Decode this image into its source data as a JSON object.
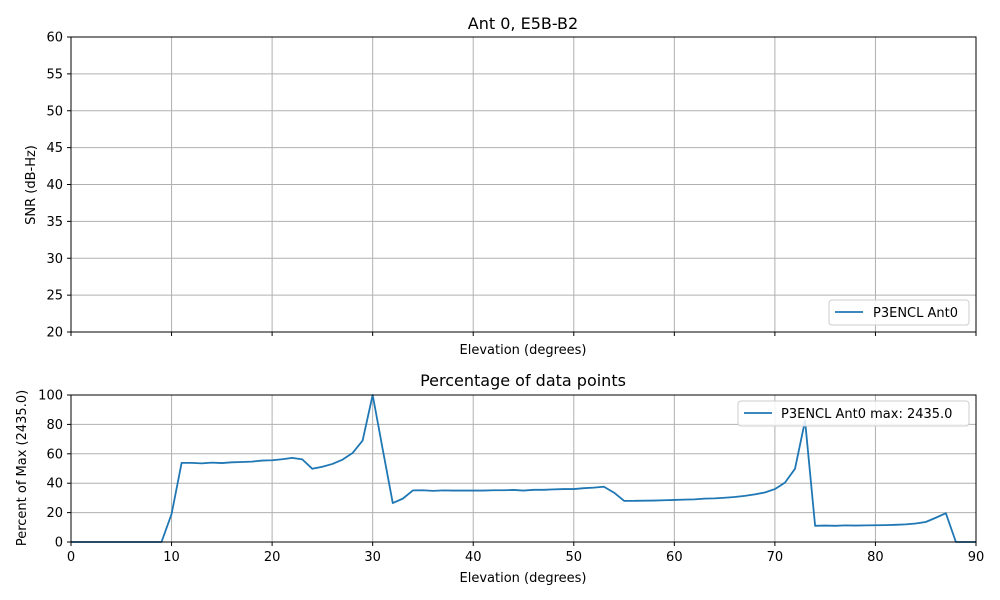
{
  "chart_data": [
    {
      "type": "line",
      "title": "Ant 0, E5B-B2",
      "xlabel": "Elevation (degrees)",
      "ylabel": "SNR (dB-Hz)",
      "xlim": [
        0,
        90
      ],
      "ylim": [
        20,
        60
      ],
      "x_ticks": [
        0,
        10,
        20,
        30,
        40,
        50,
        60,
        70,
        80,
        90
      ],
      "x_tick_labels_visible": false,
      "y_ticks": [
        20,
        25,
        30,
        35,
        40,
        45,
        50,
        55,
        60
      ],
      "grid": true,
      "legend_position": "lower-right",
      "series": [
        {
          "name": "P3ENCL Ant0",
          "color": "#1f77b4",
          "x": [],
          "y": []
        }
      ]
    },
    {
      "type": "line",
      "title": "Percentage of data points",
      "xlabel": "Elevation (degrees)",
      "ylabel": "Percent of Max (2435.0)",
      "xlim": [
        0,
        90
      ],
      "ylim": [
        0,
        100
      ],
      "x_ticks": [
        0,
        10,
        20,
        30,
        40,
        50,
        60,
        70,
        80,
        90
      ],
      "x_tick_labels_visible": true,
      "y_ticks": [
        0,
        20,
        40,
        60,
        80,
        100
      ],
      "grid": true,
      "legend_position": "upper-right",
      "series": [
        {
          "name": "P3ENCL Ant0 max: 2435.0",
          "color": "#1f77b4",
          "x": [
            0,
            1,
            2,
            3,
            4,
            5,
            6,
            7,
            8,
            9,
            10,
            11,
            12,
            13,
            14,
            15,
            16,
            17,
            18,
            19,
            20,
            21,
            22,
            23,
            24,
            25,
            26,
            27,
            28,
            29,
            30,
            31,
            32,
            33,
            34,
            35,
            36,
            37,
            38,
            39,
            40,
            41,
            42,
            43,
            44,
            45,
            46,
            47,
            48,
            49,
            50,
            51,
            52,
            53,
            54,
            55,
            56,
            57,
            58,
            59,
            60,
            61,
            62,
            63,
            64,
            65,
            66,
            67,
            68,
            69,
            70,
            71,
            72,
            73,
            74,
            75,
            76,
            77,
            78,
            79,
            80,
            81,
            82,
            83,
            84,
            85,
            86,
            87,
            88,
            89,
            90
          ],
          "y": [
            0,
            0,
            0,
            0,
            0,
            0,
            0,
            0,
            0,
            0,
            19,
            53.8,
            53.8,
            53.5,
            54,
            53.7,
            54.2,
            54.4,
            54.7,
            55.4,
            55.6,
            56.3,
            57.2,
            56.2,
            49.8,
            51.2,
            53.1,
            56,
            60.5,
            69,
            100,
            63,
            26.5,
            29.5,
            35.1,
            35.2,
            34.8,
            35.1,
            35,
            35,
            35,
            35,
            35.2,
            35.2,
            35.4,
            35,
            35.5,
            35.5,
            35.8,
            36,
            36,
            36.6,
            37,
            37.6,
            33.6,
            28,
            28,
            28.1,
            28.2,
            28.4,
            28.6,
            28.8,
            29,
            29.5,
            29.7,
            30.1,
            30.6,
            31.4,
            32.4,
            33.7,
            36,
            40.4,
            49.8,
            82.5,
            11,
            11.2,
            11,
            11.3,
            11.2,
            11.3,
            11.4,
            11.5,
            11.7,
            12,
            12.6,
            13.6,
            16.5,
            19.6,
            0,
            0,
            0
          ]
        }
      ]
    }
  ]
}
